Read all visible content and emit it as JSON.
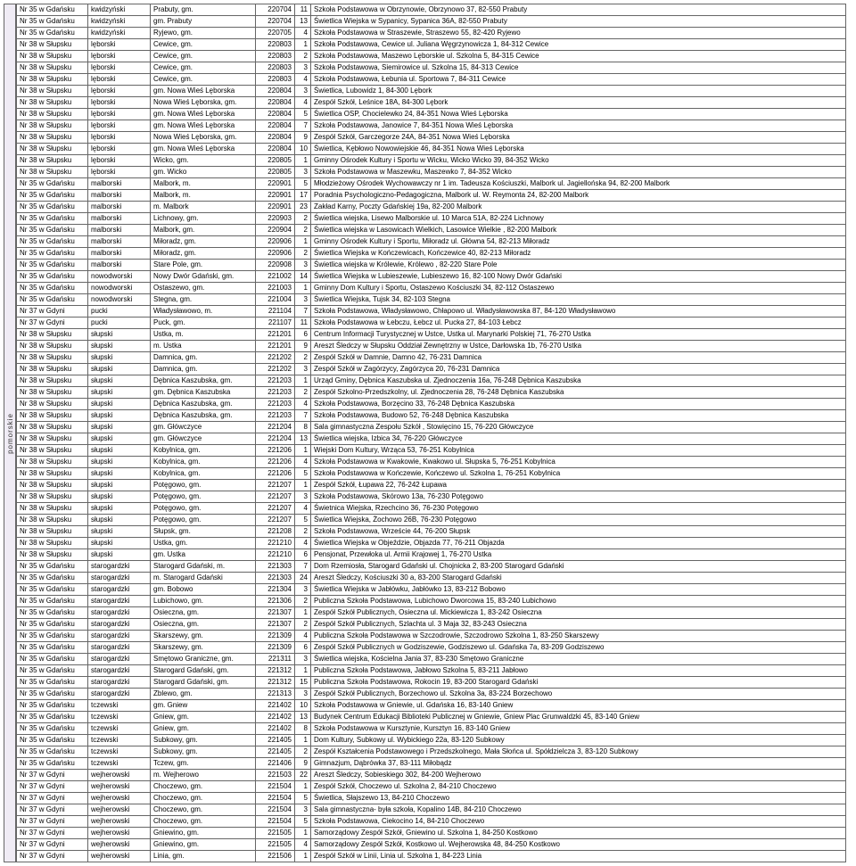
{
  "sideLabel": "pomorskie",
  "colWidths": [
    "80px",
    "70px",
    "118px",
    "44px",
    "18px",
    "600px"
  ],
  "rows": [
    [
      "Nr 35 w Gdańsku",
      "kwidzyński",
      "Prabuty, gm.",
      "220704",
      "11",
      "Szkoła Podstawowa w Obrzynowie, Obrzynowo 37, 82-550 Prabuty"
    ],
    [
      "Nr 35 w Gdańsku",
      "kwidzyński",
      "gm. Prabuty",
      "220704",
      "13",
      "Świetlica Wiejska w Sypanicy, Sypanica 36A, 82-550 Prabuty"
    ],
    [
      "Nr 35 w Gdańsku",
      "kwidzyński",
      "Ryjewo, gm.",
      "220705",
      "4",
      "Szkoła Podstawowa w Straszewie, Straszewo 55, 82-420 Ryjewo"
    ],
    [
      "Nr 38 w Słupsku",
      "lęborski",
      "Cewice, gm.",
      "220803",
      "1",
      "Szkoła Podstawowa, Cewice ul. Juliana Węgrzynowicza 1, 84-312 Cewice"
    ],
    [
      "Nr 38 w Słupsku",
      "lęborski",
      "Cewice, gm.",
      "220803",
      "2",
      "Szkoła Podstawowa, Maszewo Lęborskie ul. Szkolna 5, 84-315 Cewice"
    ],
    [
      "Nr 38 w Słupsku",
      "lęborski",
      "Cewice, gm.",
      "220803",
      "3",
      "Szkoła Podstawowa, Siemirowice ul. Szkolna 15, 84-313 Cewice"
    ],
    [
      "Nr 38 w Słupsku",
      "lęborski",
      "Cewice, gm.",
      "220803",
      "4",
      "Szkoła Podstawowa, Łebunia ul. Sportowa 7, 84-311 Cewice"
    ],
    [
      "Nr 38 w Słupsku",
      "lęborski",
      "gm. Nowa Wieś Lęborska",
      "220804",
      "3",
      "Świetlica, Lubowidz 1, 84-300 Lębork"
    ],
    [
      "Nr 38 w Słupsku",
      "lęborski",
      "Nowa Wieś Lęborska, gm.",
      "220804",
      "4",
      "Zespół Szkół, Leśnice 18A, 84-300 Lębork"
    ],
    [
      "Nr 38 w Słupsku",
      "lęborski",
      "gm. Nowa Wieś Lęborska",
      "220804",
      "5",
      "Świetlica OSP, Chocielewko 24, 84-351 Nowa Wieś Lęborska"
    ],
    [
      "Nr 38 w Słupsku",
      "lęborski",
      "gm. Nowa Wieś Lęborska",
      "220804",
      "7",
      "Szkoła Podstawowa, Janowice 7, 84-351 Nowa Wieś Lęborska"
    ],
    [
      "Nr 38 w Słupsku",
      "lęborski",
      "Nowa Wieś Lęborska, gm.",
      "220804",
      "9",
      "Zespół Szkół, Garczegorze 24A, 84-351 Nowa Wieś Lęborska"
    ],
    [
      "Nr 38 w Słupsku",
      "lęborski",
      "gm. Nowa Wieś Lęborska",
      "220804",
      "10",
      "Świetlica, Kębłowo Nowowiejskie 46, 84-351 Nowa Wieś Lęborska"
    ],
    [
      "Nr 38 w Słupsku",
      "lęborski",
      "Wicko, gm.",
      "220805",
      "1",
      "Gminny Ośrodek Kultury i Sportu w Wicku, Wicko Wicko 39, 84-352 Wicko"
    ],
    [
      "Nr 38 w Słupsku",
      "lęborski",
      "gm. Wicko",
      "220805",
      "3",
      "Szkoła Podstawowa w Maszewku, Maszewko 7, 84-352 Wicko"
    ],
    [
      "Nr 35 w Gdańsku",
      "malborski",
      "Malbork, m.",
      "220901",
      "5",
      "Młodzieżowy Ośrodek Wychowawczy nr 1 im. Tadeusza Kościuszki, Malbork ul. Jagiellońska 94, 82-200 Malbork"
    ],
    [
      "Nr 35 w Gdańsku",
      "malborski",
      "Malbork, m.",
      "220901",
      "17",
      "Poradnia Psychologiczno-Pedagogiczna, Malbork ul. W. Reymonta 24, 82-200 Malbork"
    ],
    [
      "Nr 35 w Gdańsku",
      "malborski",
      "m. Malbork",
      "220901",
      "23",
      "Zakład Karny, Poczty Gdańskiej 19a, 82-200 Malbork"
    ],
    [
      "Nr 35 w Gdańsku",
      "malborski",
      "Lichnowy, gm.",
      "220903",
      "2",
      "Świetlica wiejska, Lisewo Malborskie ul. 10 Marca 51A, 82-224 Lichnowy"
    ],
    [
      "Nr 35 w Gdańsku",
      "malborski",
      "Malbork, gm.",
      "220904",
      "2",
      "Świetlica wiejska w Lasowicach Wielkich, Lasowice Wielkie , 82-200 Malbork"
    ],
    [
      "Nr 35 w Gdańsku",
      "malborski",
      "Miłoradz, gm.",
      "220906",
      "1",
      "Gminny Ośrodek Kultury i Sportu, Miłoradz ul. Główna 54, 82-213 Miłoradz"
    ],
    [
      "Nr 35 w Gdańsku",
      "malborski",
      "Miłoradz, gm.",
      "220906",
      "2",
      "Świetlica Wiejska w Kończewicach, Kończewice 40, 82-213 Miłoradz"
    ],
    [
      "Nr 35 w Gdańsku",
      "malborski",
      "Stare Pole, gm.",
      "220908",
      "3",
      "Świetlica wiejska w Królewie, Królewo , 82-220 Stare Pole"
    ],
    [
      "Nr 35 w Gdańsku",
      "nowodworski",
      "Nowy Dwór Gdański, gm.",
      "221002",
      "14",
      "Świetlica Wiejska w Lubieszewie, Lubieszewo 16, 82-100 Nowy Dwór Gdański"
    ],
    [
      "Nr 35 w Gdańsku",
      "nowodworski",
      "Ostaszewo, gm.",
      "221003",
      "1",
      "Gminny Dom Kultury i Sportu, Ostaszewo Kościuszki 34, 82-112 Ostaszewo"
    ],
    [
      "Nr 35 w Gdańsku",
      "nowodworski",
      "Stegna, gm.",
      "221004",
      "3",
      "Świetlica Wiejska, Tujsk 34, 82-103 Stegna"
    ],
    [
      "Nr 37 w Gdyni",
      "pucki",
      "Władysławowo, m.",
      "221104",
      "7",
      "Szkoła Podstawowa, Władysławowo, Chłapowo ul. Władysławowska 87, 84-120 Władysławowo"
    ],
    [
      "Nr 37 w Gdyni",
      "pucki",
      "Puck, gm.",
      "221107",
      "11",
      "Szkoła Podstawowa w Łebczu, Łebcz ul. Pucka 27, 84-103 Łebcz"
    ],
    [
      "Nr 38 w Słupsku",
      "słupski",
      "Ustka, m.",
      "221201",
      "6",
      "Centrum Informacji Turystycznej w Ustce, Ustka ul. Marynarki Polskiej 71, 76-270 Ustka"
    ],
    [
      "Nr 38 w Słupsku",
      "słupski",
      "m. Ustka",
      "221201",
      "9",
      "Areszt Śledczy w Słupsku Oddział Zewnętrzny w Ustce, Darłowska 1b, 76-270 Ustka"
    ],
    [
      "Nr 38 w Słupsku",
      "słupski",
      "Damnica, gm.",
      "221202",
      "2",
      "Zespół Szkół w Damnie, Damno 42, 76-231 Damnica"
    ],
    [
      "Nr 38 w Słupsku",
      "słupski",
      "Damnica, gm.",
      "221202",
      "3",
      "Zespół Szkół w Zagórzycy, Zagórzyca 20, 76-231 Damnica"
    ],
    [
      "Nr 38 w Słupsku",
      "słupski",
      "Dębnica Kaszubska, gm.",
      "221203",
      "1",
      "Urząd Gminy, Dębnica Kaszubska ul. Zjednoczenia 16a, 76-248 Dębnica Kaszubska"
    ],
    [
      "Nr 38 w Słupsku",
      "słupski",
      "gm. Dębnica Kaszubska",
      "221203",
      "2",
      "Zespół Szkolno-Przedszkolny, ul. Zjednoczenia 28, 76-248 Dębnica Kaszubska"
    ],
    [
      "Nr 38 w Słupsku",
      "słupski",
      "Dębnica Kaszubska, gm.",
      "221203",
      "4",
      "Szkoła Podstawowa, Borzęcino 33, 76-248 Dębnica Kaszubska"
    ],
    [
      "Nr 38 w Słupsku",
      "słupski",
      "Dębnica Kaszubska, gm.",
      "221203",
      "7",
      "Szkoła Podstawowa, Budowo 52, 76-248 Dębnica Kaszubska"
    ],
    [
      "Nr 38 w Słupsku",
      "słupski",
      "gm. Główczyce",
      "221204",
      "8",
      "Sala gimnastyczna Zespołu Szkół , Stowięcino 15, 76-220 Główczyce"
    ],
    [
      "Nr 38 w Słupsku",
      "słupski",
      "gm. Główczyce",
      "221204",
      "13",
      "Świetlica wiejska, Izbica 34, 76-220 Główczyce"
    ],
    [
      "Nr 38 w Słupsku",
      "słupski",
      "Kobylnica, gm.",
      "221206",
      "1",
      "Wiejski Dom Kultury, Wrząca 53, 76-251 Kobylnica"
    ],
    [
      "Nr 38 w Słupsku",
      "słupski",
      "Kobylnica, gm.",
      "221206",
      "4",
      "Szkoła Podstawowa w Kwakowie, Kwakowo ul. Słupska 5, 76-251 Kobylnica"
    ],
    [
      "Nr 38 w Słupsku",
      "słupski",
      "Kobylnica, gm.",
      "221206",
      "5",
      "Szkoła Podstawowa w Kończewie, Kończewo ul. Szkolna 1, 76-251 Kobylnica"
    ],
    [
      "Nr 38 w Słupsku",
      "słupski",
      "Potęgowo, gm.",
      "221207",
      "1",
      "Zespół Szkół, Łupawa 22, 76-242 Łupawa"
    ],
    [
      "Nr 38 w Słupsku",
      "słupski",
      "Potęgowo, gm.",
      "221207",
      "3",
      "Szkoła Podstawowa, Skórowo 13a, 76-230 Potęgowo"
    ],
    [
      "Nr 38 w Słupsku",
      "słupski",
      "Potęgowo, gm.",
      "221207",
      "4",
      "Świetnica Wiejska, Rzechcino 36, 76-230 Potęgowo"
    ],
    [
      "Nr 38 w Słupsku",
      "słupski",
      "Potęgowo, gm.",
      "221207",
      "5",
      "Świetlica Wiejska, Żochowo 26B, 76-230 Potęgowo"
    ],
    [
      "Nr 38 w Słupsku",
      "słupski",
      "Słupsk, gm.",
      "221208",
      "2",
      "Szkoła Podstawowa, Wrzeście 44, 76-200 Słupsk"
    ],
    [
      "Nr 38 w Słupsku",
      "słupski",
      "Ustka, gm.",
      "221210",
      "4",
      "Świetlica Wiejska w Objeździe, Objazda 77, 76-211 Objazda"
    ],
    [
      "Nr 38 w Słupsku",
      "słupski",
      "gm. Ustka",
      "221210",
      "6",
      "Pensjonat, Przewłoka ul. Armii Krajowej 1, 76-270 Ustka"
    ],
    [
      "Nr 35 w Gdańsku",
      "starogardzki",
      "Starogard Gdański, m.",
      "221303",
      "7",
      "Dom Rzemiosła, Starogard Gdański ul. Chojnicka 2, 83-200 Starogard Gdański"
    ],
    [
      "Nr 35 w Gdańsku",
      "starogardzki",
      "m. Starogard Gdański",
      "221303",
      "24",
      "Areszt Śledczy, Kościuszki 30 a, 83-200 Starogard Gdański"
    ],
    [
      "Nr 35 w Gdańsku",
      "starogardzki",
      "gm. Bobowo",
      "221304",
      "3",
      "Świetlica Wiejska w Jabłówku, Jabłówko 13, 83-212 Bobowo"
    ],
    [
      "Nr 35 w Gdańsku",
      "starogardzki",
      "Lubichowo, gm.",
      "221306",
      "2",
      "Publiczna Szkoła Podstawowa, Lubichowo Dworcowa 15, 83-240 Lubichowo"
    ],
    [
      "Nr 35 w Gdańsku",
      "starogardzki",
      "Osieczna, gm.",
      "221307",
      "1",
      "Zespół Szkół Publicznych, Osieczna ul. Mickiewicza 1, 83-242 Osieczna"
    ],
    [
      "Nr 35 w Gdańsku",
      "starogardzki",
      "Osieczna, gm.",
      "221307",
      "2",
      "Zespół Szkół Publicznych, Szlachta ul. 3 Maja 32, 83-243 Osieczna"
    ],
    [
      "Nr 35 w Gdańsku",
      "starogardzki",
      "Skarszewy, gm.",
      "221309",
      "4",
      "Publiczna Szkoła Podstawowa w Szczodrowie, Szczodrowo Szkolna 1, 83-250 Skarszewy"
    ],
    [
      "Nr 35 w Gdańsku",
      "starogardzki",
      "Skarszewy, gm.",
      "221309",
      "6",
      "Zespół Szkół Publicznych w Godziszewie, Godziszewo ul. Gdańska 7a, 83-209 Godziszewo"
    ],
    [
      "Nr 35 w Gdańsku",
      "starogardzki",
      "Smętowo Graniczne, gm.",
      "221311",
      "3",
      "Świetlica wiejska, Kościelna Jania 37, 83-230 Smętowo Graniczne"
    ],
    [
      "Nr 35 w Gdańsku",
      "starogardzki",
      "Starogard Gdański, gm.",
      "221312",
      "1",
      "Publiczna Szkoła Podstawowa, Jabłowo Szkolna 5, 83-211 Jabłowo"
    ],
    [
      "Nr 35 w Gdańsku",
      "starogardzki",
      "Starogard Gdański, gm.",
      "221312",
      "15",
      "Publiczna Szkoła Podstawowa, Rokocin 19, 83-200 Starogard Gdański"
    ],
    [
      "Nr 35 w Gdańsku",
      "starogardzki",
      "Zblewo, gm.",
      "221313",
      "3",
      "Zespół Szkół Publicznych, Borzechowo ul. Szkolna 3a, 83-224 Borzechowo"
    ],
    [
      "Nr 35 w Gdańsku",
      "tczewski",
      "gm. Gniew",
      "221402",
      "10",
      "Szkoła Podstawowa w Gniewie, ul. Gdańska 16, 83-140 Gniew"
    ],
    [
      "Nr 35 w Gdańsku",
      "tczewski",
      "Gniew, gm.",
      "221402",
      "13",
      "Budynek Centrum Edukacji Biblioteki Publicznej w Gniewie, Gniew Plac Grunwaldzki 45, 83-140 Gniew"
    ],
    [
      "Nr 35 w Gdańsku",
      "tczewski",
      "Gniew, gm.",
      "221402",
      "8",
      "Szkoła Podstawowa w Kursztynie, Kursztyn 16, 83-140 Gniew"
    ],
    [
      "Nr 35 w Gdańsku",
      "tczewski",
      "Subkowy, gm.",
      "221405",
      "1",
      "Dom Kultury, Subkowy ul. Wybickiego 22a, 83-120 Subkowy"
    ],
    [
      "Nr 35 w Gdańsku",
      "tczewski",
      "Subkowy, gm.",
      "221405",
      "2",
      "Zespół Kształcenia Podstawowego i Przedszkolnego, Mała Słońca ul. Spółdzielcza 3, 83-120 Subkowy"
    ],
    [
      "Nr 35 w Gdańsku",
      "tczewski",
      "Tczew, gm.",
      "221406",
      "9",
      "Gimnazjum, Dąbrówka 37, 83-111 Miłobądz"
    ],
    [
      "Nr 37 w Gdyni",
      "wejherowski",
      "m. Wejherowo",
      "221503",
      "22",
      "Areszt Śledczy, Sobieskiego 302, 84-200 Wejherowo"
    ],
    [
      "Nr 37 w Gdyni",
      "wejherowski",
      "Choczewo, gm.",
      "221504",
      "1",
      "Zespół Szkół, Choczewo ul. Szkolna 2, 84-210 Choczewo"
    ],
    [
      "Nr 37 w Gdyni",
      "wejherowski",
      "Choczewo, gm.",
      "221504",
      "5",
      "Świetlica, Słajszewo 13, 84-210 Choczewo"
    ],
    [
      "Nr 37 w Gdyni",
      "wejherowski",
      "Choczewo, gm.",
      "221504",
      "3",
      "Sala gimnastyczna- była szkoła, Kopalino 14B, 84-210 Choczewo"
    ],
    [
      "Nr 37 w Gdyni",
      "wejherowski",
      "Choczewo, gm.",
      "221504",
      "5",
      "Szkoła Podstawowa, Ciekocino 14, 84-210 Choczewo"
    ],
    [
      "Nr 37 w Gdyni",
      "wejherowski",
      "Gniewino, gm.",
      "221505",
      "1",
      "Samorządowy Zespół Szkół, Gniewino ul. Szkolna 1, 84-250 Kostkowo"
    ],
    [
      "Nr 37 w Gdyni",
      "wejherowski",
      "Gniewino, gm.",
      "221505",
      "4",
      "Samorządowy Zespół Szkół, Kostkowo ul. Wejherowska 48, 84-250 Kostkowo"
    ],
    [
      "Nr 37 w Gdyni",
      "wejherowski",
      "Linia, gm.",
      "221506",
      "1",
      "Zespół Szkół w Linii, Linia ul. Szkolna 1, 84-223 Linia"
    ]
  ]
}
